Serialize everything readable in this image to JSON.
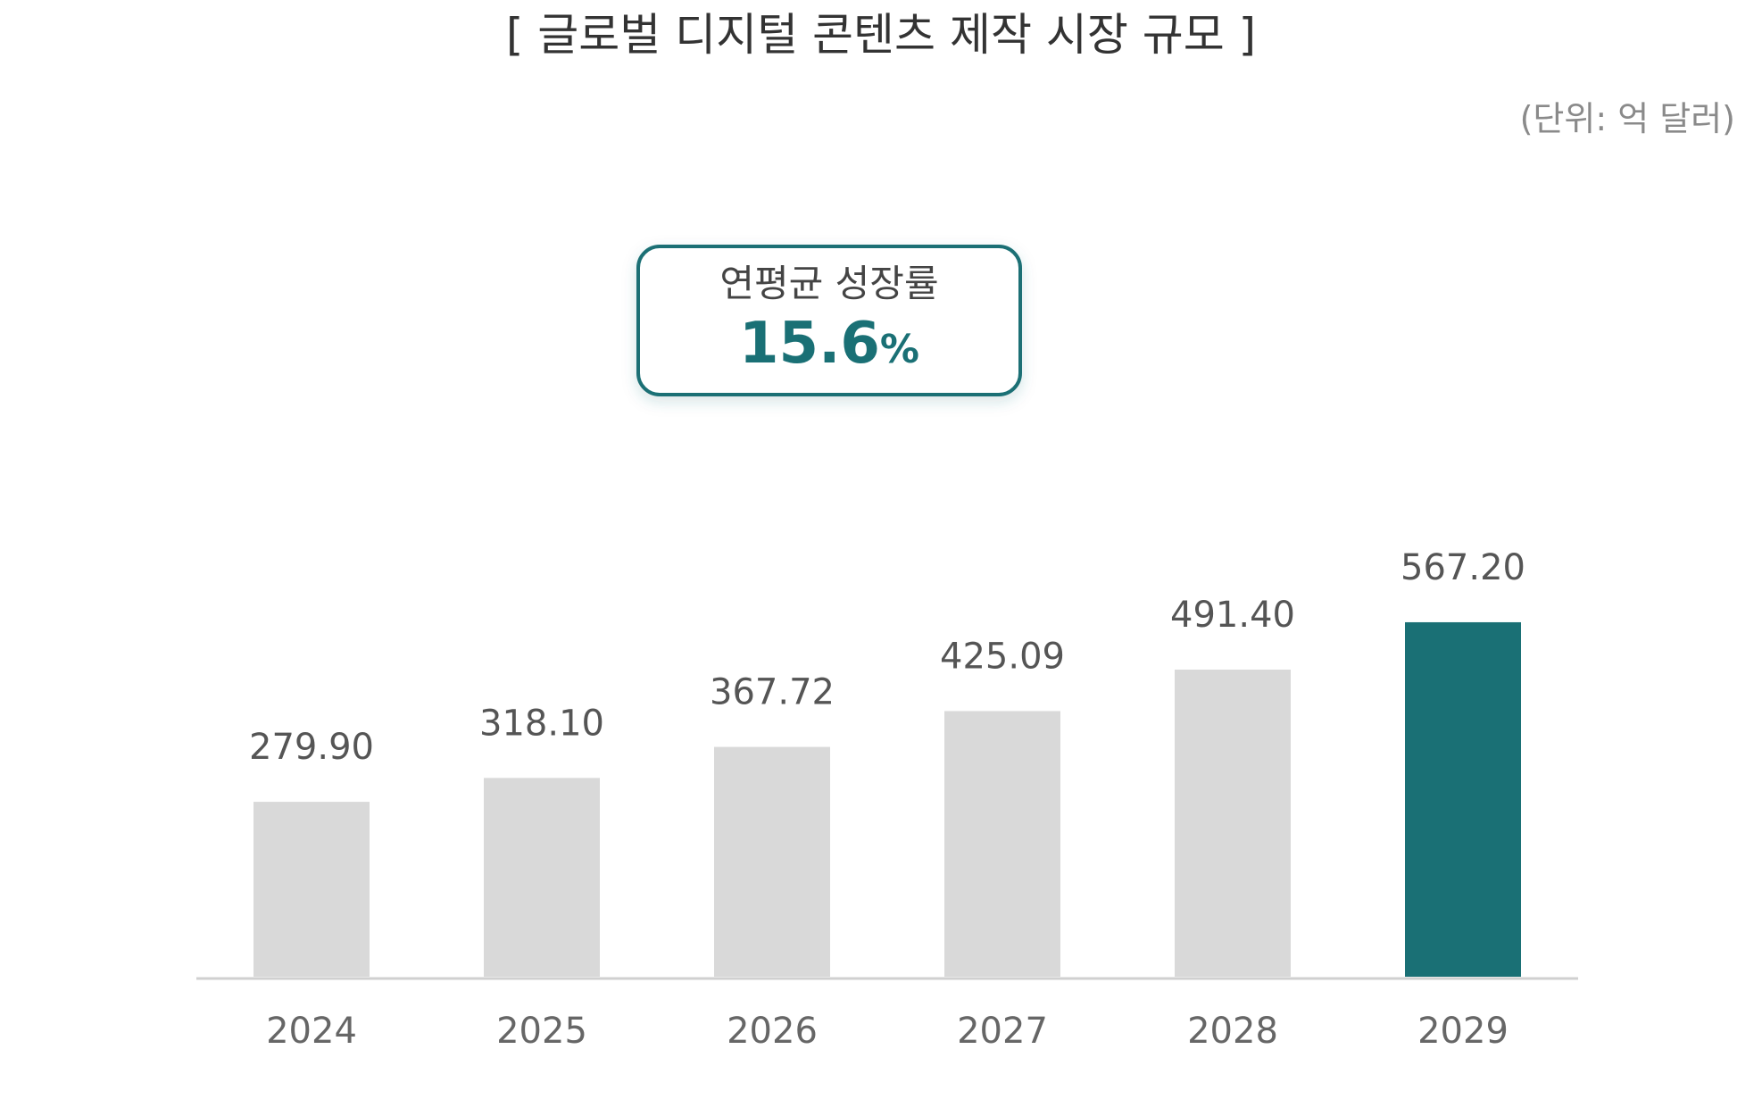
{
  "chart_data": {
    "type": "bar",
    "title": "[ 글로벌 디지털 콘텐츠 제작 시장 규모 ]",
    "unit": "(단위: 억 달러)",
    "categories": [
      "2024",
      "2025",
      "2026",
      "2027",
      "2028",
      "2029"
    ],
    "values": [
      279.9,
      318.1,
      367.72,
      425.09,
      491.4,
      567.2
    ],
    "value_labels": [
      "279.90",
      "318.10",
      "367.72",
      "425.09",
      "491.40",
      "567.20"
    ],
    "xlabel": "",
    "ylabel": "",
    "grid": false,
    "annotation": {
      "label": "연평균 성장률",
      "value": "15.6",
      "unit": "%"
    },
    "colors": {
      "bar": "#d9d9d9",
      "highlight": "#1a7075",
      "axis": "#d0d0d0",
      "box_border": "#1a7075"
    },
    "highlight_index": 5
  }
}
